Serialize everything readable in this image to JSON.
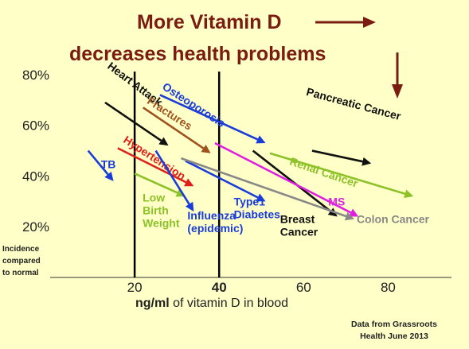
{
  "chart_data": {
    "type": "line",
    "title_line1": "More Vitamin D",
    "title_line2": "decreases health problems",
    "xlabel_bold": "ng/ml",
    "xlabel_rest": " of vitamin D in blood",
    "ylabel_lines": [
      "Incidence",
      "compared",
      "to normal"
    ],
    "xlim": [
      0,
      95
    ],
    "ylim": [
      0,
      90
    ],
    "x_ticks": [
      {
        "value": 20,
        "label": "20",
        "bold": false
      },
      {
        "value": 40,
        "label": "40",
        "bold": true
      },
      {
        "value": 60,
        "label": "60",
        "bold": false
      },
      {
        "value": 80,
        "label": "80",
        "bold": false
      }
    ],
    "y_ticks": [
      {
        "value": 20,
        "label": "20%"
      },
      {
        "value": 40,
        "label": "40%"
      },
      {
        "value": 60,
        "label": "60%"
      },
      {
        "value": 80,
        "label": "80%"
      }
    ],
    "reference_lines_x": [
      20,
      40
    ],
    "source": [
      "Data from Grassroots",
      "Health June 2013"
    ],
    "series": [
      {
        "name": "TB",
        "color": "#1A3CD8",
        "x": [
          9,
          15
        ],
        "y": [
          50,
          38
        ],
        "label": [
          "TB"
        ]
      },
      {
        "name": "Heart Attack",
        "color": "#111111",
        "x": [
          13,
          28
        ],
        "y": [
          69,
          52
        ],
        "label": [
          "Heart Attack"
        ]
      },
      {
        "name": "Osteoporosis",
        "color": "#1A3CD8",
        "x": [
          26,
          51
        ],
        "y": [
          72,
          53
        ],
        "label": [
          "Osteoporosis"
        ]
      },
      {
        "name": "Fractures",
        "color": "#A0521E",
        "x": [
          22,
          38
        ],
        "y": [
          67,
          49
        ],
        "label": [
          "Fractures"
        ]
      },
      {
        "name": "Hypertension",
        "color": "#E0201A",
        "x": [
          16,
          34
        ],
        "y": [
          51,
          36
        ],
        "label": [
          "Hypertension"
        ]
      },
      {
        "name": "Low Birth Weight",
        "color": "#8CC228",
        "x": [
          20,
          32
        ],
        "y": [
          41,
          32
        ],
        "label": [
          "Low",
          "Birth",
          "Weight"
        ]
      },
      {
        "name": "Influenza (epidemic)",
        "color": "#1A3CD8",
        "x": [
          25,
          34
        ],
        "y": [
          50,
          26
        ],
        "label": [
          "Influenza",
          "(epidemic)"
        ]
      },
      {
        "name": "Type1 Diabetes",
        "color": "#1A3CD8",
        "x": [
          32,
          51
        ],
        "y": [
          46,
          30
        ],
        "label": [
          "Type1",
          "Diabetes"
        ]
      },
      {
        "name": "Breast Cancer",
        "color": "#111111",
        "x": [
          48,
          68
        ],
        "y": [
          50,
          24
        ],
        "label": [
          "Breast",
          "Cancer"
        ]
      },
      {
        "name": "Pancreatic Cancer",
        "color": "#111111",
        "x": [
          62,
          76
        ],
        "y": [
          50,
          45
        ],
        "label": [
          "Pancreatic Cancer"
        ]
      },
      {
        "name": "Renal Cancer",
        "color": "#8CC228",
        "x": [
          52,
          86
        ],
        "y": [
          49,
          32
        ],
        "label": [
          "Renal Cancer"
        ]
      },
      {
        "name": "MS",
        "color": "#E020E0",
        "x": [
          39,
          73
        ],
        "y": [
          53,
          24
        ],
        "label": [
          "MS"
        ]
      },
      {
        "name": "Colon Cancer",
        "color": "#888888",
        "x": [
          31,
          72
        ],
        "y": [
          47,
          23
        ],
        "label": [
          "Colon Cancer"
        ]
      }
    ]
  }
}
